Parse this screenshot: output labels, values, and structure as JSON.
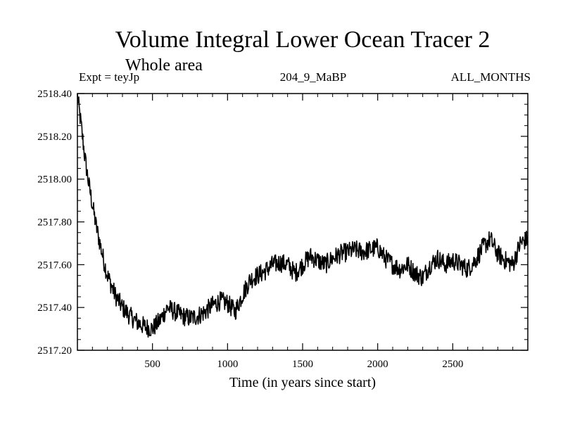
{
  "chart_data": {
    "type": "line",
    "title": "Volume Integral Lower Ocean Tracer 2",
    "subtitle": "Whole area",
    "header_left": "Expt = teyJp",
    "header_center": "204_9_MaBP",
    "header_right": "ALL_MONTHS",
    "xlabel": "Time (in years since start)",
    "ylabel": "",
    "xlim": [
      0,
      3000
    ],
    "ylim": [
      2517.2,
      2518.4
    ],
    "x_ticks": [
      500,
      1000,
      1500,
      2000,
      2500
    ],
    "x_tick_labels": [
      "500",
      "1000",
      "1500",
      "2000",
      "2500"
    ],
    "y_ticks": [
      2517.2,
      2517.4,
      2517.6,
      2517.8,
      2518.0,
      2518.2,
      2518.4
    ],
    "y_tick_labels": [
      "2517.20",
      "2517.40",
      "2517.60",
      "2517.80",
      "2518.00",
      "2518.20",
      "2518.40"
    ],
    "grid": false,
    "series": [
      {
        "name": "teyJp",
        "x": [
          0,
          25,
          50,
          75,
          100,
          125,
          150,
          175,
          200,
          250,
          300,
          350,
          400,
          450,
          500,
          550,
          600,
          650,
          700,
          750,
          800,
          850,
          900,
          950,
          1000,
          1050,
          1100,
          1150,
          1200,
          1250,
          1300,
          1350,
          1400,
          1450,
          1500,
          1550,
          1600,
          1650,
          1700,
          1750,
          1800,
          1850,
          1900,
          1950,
          2000,
          2050,
          2100,
          2150,
          2200,
          2250,
          2300,
          2350,
          2400,
          2450,
          2500,
          2550,
          2600,
          2650,
          2700,
          2750,
          2800,
          2850,
          2900,
          2950,
          3000
        ],
        "values": [
          2518.39,
          2518.25,
          2518.1,
          2517.98,
          2517.88,
          2517.78,
          2517.7,
          2517.62,
          2517.55,
          2517.46,
          2517.4,
          2517.36,
          2517.33,
          2517.31,
          2517.3,
          2517.34,
          2517.4,
          2517.38,
          2517.36,
          2517.35,
          2517.36,
          2517.38,
          2517.41,
          2517.43,
          2517.42,
          2517.38,
          2517.46,
          2517.53,
          2517.55,
          2517.57,
          2517.6,
          2517.61,
          2517.6,
          2517.56,
          2517.6,
          2517.64,
          2517.62,
          2517.6,
          2517.63,
          2517.65,
          2517.66,
          2517.67,
          2517.66,
          2517.67,
          2517.68,
          2517.63,
          2517.6,
          2517.58,
          2517.6,
          2517.56,
          2517.54,
          2517.6,
          2517.63,
          2517.6,
          2517.62,
          2517.6,
          2517.58,
          2517.62,
          2517.68,
          2517.72,
          2517.65,
          2517.62,
          2517.6,
          2517.7,
          2517.72
        ]
      }
    ]
  }
}
